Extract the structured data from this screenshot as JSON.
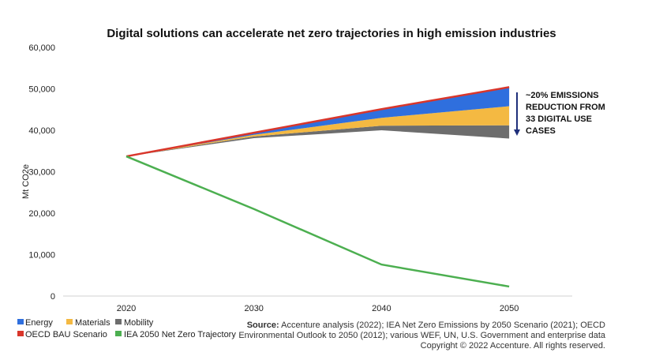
{
  "chart_data": {
    "type": "area",
    "title": "Digital solutions can accelerate net zero trajectories in high emission industries",
    "xlabel": "",
    "ylabel": "Mt CO2e",
    "ylim": [
      0,
      60000
    ],
    "yticks": [
      "0",
      "10,000",
      "20,000",
      "30,000",
      "40,000",
      "50,000",
      "60,000"
    ],
    "x": [
      "2020",
      "2030",
      "2040",
      "2050"
    ],
    "grid": false,
    "legend_position": "bottom-left",
    "stacked_reductions": [
      {
        "name": "Mobility",
        "color": "#6d6d6d",
        "values": [
          0,
          400,
          1100,
          3200
        ]
      },
      {
        "name": "Materials",
        "color": "#f4b942",
        "values": [
          0,
          400,
          1900,
          4600
        ]
      },
      {
        "name": "Energy",
        "color": "#2f6fde",
        "values": [
          0,
          500,
          2100,
          4600
        ]
      }
    ],
    "lines": [
      {
        "name": "OECD BAU Scenario",
        "color": "#d9362b",
        "values": [
          33700,
          39400,
          45100,
          50400
        ]
      },
      {
        "name": "IEA 2050 Net Zero Trajectory",
        "color": "#4caf50",
        "values": [
          33700,
          21000,
          7600,
          2300
        ]
      }
    ],
    "annotation": [
      "~20% EMISSIONS",
      "REDUCTION FROM",
      "33 DIGITAL USE",
      "CASES"
    ],
    "annotation_arrow_color": "#1f2f7a",
    "legend": [
      "Energy",
      "Materials",
      "Mobility",
      "OECD BAU Scenario",
      "IEA 2050 Net Zero Trajectory"
    ]
  },
  "source": {
    "label": "Source:",
    "lines": [
      " Accenture analysis (2022); IEA Net Zero Emissions by 2050 Scenario (2021); OECD",
      "Environmental Outlook to 2050 (2012); various WEF, UN, U.S. Government and enterprise data",
      "Copyright © 2022 Accenture. All rights reserved."
    ]
  }
}
